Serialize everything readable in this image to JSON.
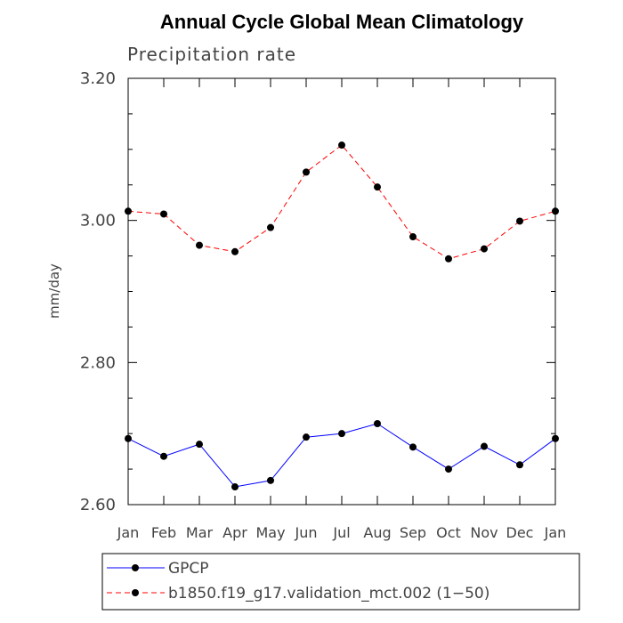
{
  "chart_data": {
    "type": "line",
    "title": "Annual Cycle Global Mean Climatology",
    "subtitle": "Precipitation rate",
    "xlabel": "",
    "ylabel": "mm/day",
    "categories": [
      "Jan",
      "Feb",
      "Mar",
      "Apr",
      "May",
      "Jun",
      "Jul",
      "Aug",
      "Sep",
      "Oct",
      "Nov",
      "Dec",
      "Jan"
    ],
    "ylim": [
      2.6,
      3.2
    ],
    "yticks": [
      "2.60",
      "2.80",
      "3.00",
      "3.20"
    ],
    "grid": false,
    "legend_position": "bottom",
    "series": [
      {
        "name": "GPCP",
        "color": "#0000ff",
        "line_style": "solid",
        "marker": "circle",
        "values": [
          2.693,
          2.668,
          2.685,
          2.625,
          2.634,
          2.695,
          2.7,
          2.714,
          2.681,
          2.65,
          2.682,
          2.656,
          2.693
        ]
      },
      {
        "name": "b1850.f19_g17.validation_mct.002 (1−50)",
        "color": "#ff0000",
        "line_style": "dashed",
        "marker": "circle",
        "values": [
          3.013,
          3.009,
          2.965,
          2.956,
          2.99,
          3.068,
          3.106,
          3.047,
          2.977,
          2.946,
          2.96,
          2.999,
          3.013
        ]
      }
    ]
  }
}
